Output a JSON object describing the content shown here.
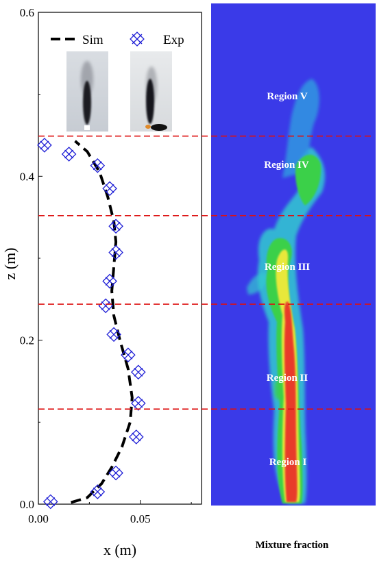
{
  "chart_data": {
    "type": "line",
    "xlabel": "x (m)",
    "ylabel": "z (m)",
    "xlim": [
      0,
      0.08
    ],
    "ylim": [
      0,
      0.6
    ],
    "x_ticks": [
      "0.00",
      "0.05"
    ],
    "x_tick_values": [
      0,
      0.05
    ],
    "y_ticks": [
      "0.0",
      "0.2",
      "0.4",
      "0.6"
    ],
    "y_tick_values": [
      0,
      0.2,
      0.4,
      0.6
    ],
    "grid": false,
    "legend_position": "top",
    "series": [
      {
        "name": "Sim",
        "style": "dashed-line",
        "color": "#000000",
        "points": [
          [
            0.016,
            0.002
          ],
          [
            0.024,
            0.008
          ],
          [
            0.031,
            0.025
          ],
          [
            0.036,
            0.045
          ],
          [
            0.041,
            0.07
          ],
          [
            0.045,
            0.1
          ],
          [
            0.046,
            0.13
          ],
          [
            0.044,
            0.165
          ],
          [
            0.04,
            0.2
          ],
          [
            0.037,
            0.23
          ],
          [
            0.036,
            0.26
          ],
          [
            0.037,
            0.29
          ],
          [
            0.038,
            0.32
          ],
          [
            0.037,
            0.345
          ],
          [
            0.034,
            0.375
          ],
          [
            0.03,
            0.405
          ],
          [
            0.024,
            0.43
          ],
          [
            0.018,
            0.443
          ]
        ]
      },
      {
        "name": "Exp",
        "style": "crossed-marker",
        "color": "#1f1fd6",
        "points": [
          [
            0.006,
            0.003
          ],
          [
            0.029,
            0.015
          ],
          [
            0.038,
            0.038
          ],
          [
            0.048,
            0.082
          ],
          [
            0.049,
            0.123
          ],
          [
            0.049,
            0.161
          ],
          [
            0.044,
            0.182
          ],
          [
            0.037,
            0.207
          ],
          [
            0.033,
            0.242
          ],
          [
            0.035,
            0.272
          ],
          [
            0.038,
            0.307
          ],
          [
            0.038,
            0.339
          ],
          [
            0.035,
            0.385
          ],
          [
            0.029,
            0.413
          ],
          [
            0.015,
            0.427
          ],
          [
            0.003,
            0.438
          ]
        ]
      }
    ],
    "region_boundaries": [
      0.116,
      0.244,
      0.352,
      0.449
    ],
    "boundary_color": "#dd1111"
  },
  "contour_panel": {
    "background_color": "#3a3ae8",
    "caption": "Mixture fraction",
    "regions": [
      {
        "label": "Region I"
      },
      {
        "label": "Region II"
      },
      {
        "label": "Region III"
      },
      {
        "label": "Region IV"
      },
      {
        "label": "Region V"
      }
    ]
  },
  "colors": {
    "contour_low": "#3a3ae8",
    "contour_cyan": "#33c9d0",
    "contour_green": "#3ad04a",
    "contour_yellow": "#e8e83a",
    "contour_red": "#e83a2a"
  }
}
